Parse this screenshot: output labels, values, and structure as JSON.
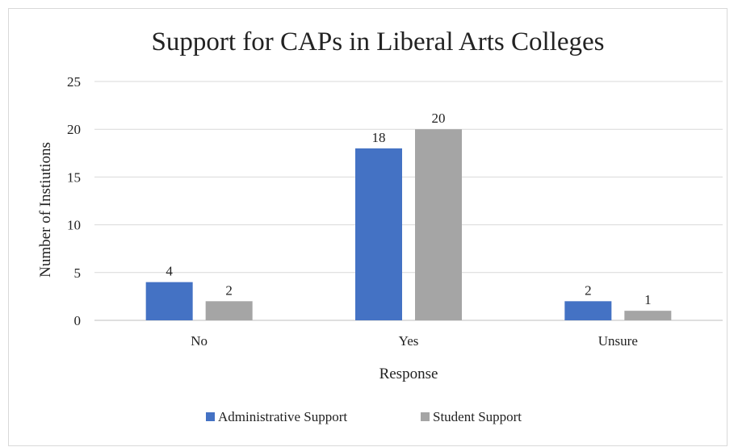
{
  "chart_data": {
    "type": "bar",
    "title": "Support for CAPs in Liberal Arts Colleges",
    "xlabel": "Response",
    "ylabel": "Number of Instiutions",
    "categories": [
      "No",
      "Yes",
      "Unsure"
    ],
    "series": [
      {
        "name": "Administrative Support",
        "values": [
          4,
          18,
          2
        ],
        "color": "#4472C4"
      },
      {
        "name": "Student Support",
        "values": [
          2,
          20,
          1
        ],
        "color": "#A5A5A5"
      }
    ],
    "ylim": [
      0,
      25
    ],
    "yticks": [
      "0",
      "5",
      "10",
      "15",
      "20",
      "25"
    ],
    "grid": true,
    "legend_position": "bottom",
    "data_labels": true
  }
}
